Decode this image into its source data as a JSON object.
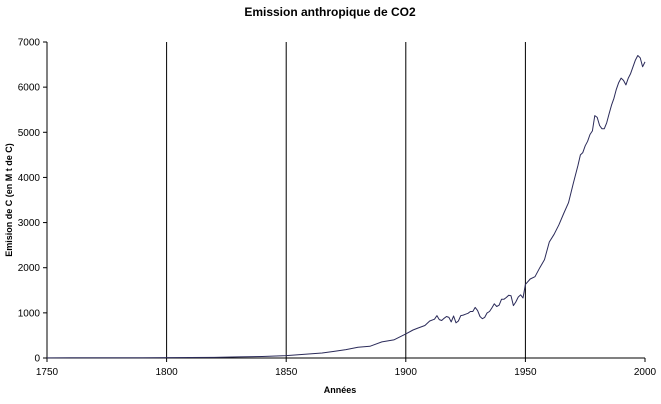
{
  "chart_data": {
    "type": "line",
    "title": "Emission anthropique de CO2",
    "xlabel": "Années",
    "ylabel": "Emision de C (en M t de C)",
    "xlim": [
      1750,
      2000
    ],
    "ylim": [
      0,
      7000
    ],
    "x_ticks": [
      1750,
      1800,
      1850,
      1900,
      1950,
      2000
    ],
    "y_ticks": [
      0,
      1000,
      2000,
      3000,
      4000,
      5000,
      6000,
      7000
    ],
    "vertical_gridlines": [
      1800,
      1850,
      1900,
      1950
    ],
    "horizontal_gridlines": false,
    "legend": "none",
    "line_color": "#2b2b5a",
    "series": [
      {
        "x": [
          1750,
          1760,
          1770,
          1780,
          1790,
          1800,
          1810,
          1820,
          1830,
          1840,
          1850,
          1855,
          1860,
          1865,
          1870,
          1875,
          1880,
          1885,
          1890,
          1895,
          1900,
          1903,
          1905,
          1908,
          1910,
          1912,
          1913,
          1914,
          1915,
          1916,
          1917,
          1918,
          1919,
          1920,
          1921,
          1922,
          1923,
          1924,
          1925,
          1926,
          1927,
          1928,
          1929,
          1930,
          1931,
          1932,
          1933,
          1934,
          1935,
          1936,
          1937,
          1938,
          1939,
          1940,
          1941,
          1942,
          1943,
          1944,
          1945,
          1946,
          1947,
          1948,
          1949,
          1950,
          1952,
          1954,
          1956,
          1958,
          1960,
          1962,
          1964,
          1966,
          1968,
          1970,
          1972,
          1973,
          1974,
          1975,
          1976,
          1977,
          1978,
          1979,
          1980,
          1981,
          1982,
          1983,
          1984,
          1985,
          1986,
          1987,
          1988,
          1989,
          1990,
          1991,
          1992,
          1993,
          1994,
          1995,
          1996,
          1997,
          1998,
          1999,
          2000
        ],
        "values": [
          3,
          4,
          5,
          6,
          7,
          8,
          10,
          14,
          24,
          33,
          54,
          70,
          91,
          110,
          147,
          185,
          236,
          260,
          356,
          400,
          534,
          620,
          663,
          720,
          819,
          860,
          940,
          850,
          830,
          880,
          920,
          900,
          800,
          930,
          780,
          820,
          940,
          950,
          970,
          990,
          1030,
          1030,
          1120,
          1050,
          920,
          870,
          900,
          1000,
          1030,
          1110,
          1200,
          1140,
          1170,
          1300,
          1300,
          1340,
          1390,
          1380,
          1160,
          1240,
          1350,
          1400,
          1330,
          1630,
          1750,
          1800,
          2000,
          2180,
          2570,
          2740,
          2950,
          3200,
          3440,
          3860,
          4270,
          4500,
          4550,
          4700,
          4800,
          4950,
          5030,
          5370,
          5330,
          5150,
          5080,
          5080,
          5210,
          5410,
          5600,
          5750,
          5950,
          6100,
          6200,
          6150,
          6050,
          6200,
          6300,
          6450,
          6600,
          6700,
          6650,
          6450,
          6560
        ]
      }
    ]
  }
}
